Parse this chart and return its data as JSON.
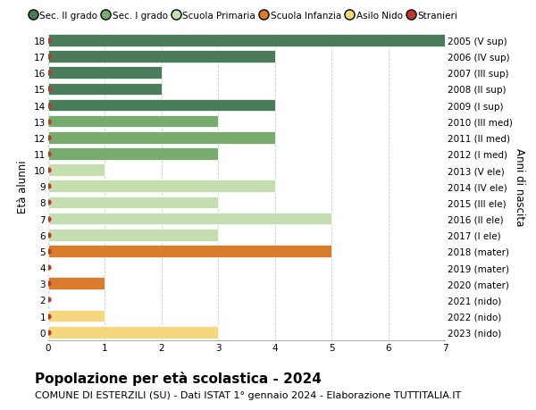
{
  "ages": [
    18,
    17,
    16,
    15,
    14,
    13,
    12,
    11,
    10,
    9,
    8,
    7,
    6,
    5,
    4,
    3,
    2,
    1,
    0
  ],
  "labels_right": [
    "2005 (V sup)",
    "2006 (IV sup)",
    "2007 (III sup)",
    "2008 (II sup)",
    "2009 (I sup)",
    "2010 (III med)",
    "2011 (II med)",
    "2012 (I med)",
    "2013 (V ele)",
    "2014 (IV ele)",
    "2015 (III ele)",
    "2016 (II ele)",
    "2017 (I ele)",
    "2018 (mater)",
    "2019 (mater)",
    "2020 (mater)",
    "2021 (nido)",
    "2022 (nido)",
    "2023 (nido)"
  ],
  "values": [
    7,
    4,
    2,
    2,
    4,
    3,
    4,
    3,
    1,
    4,
    3,
    5,
    3,
    5,
    0,
    1,
    0,
    1,
    3
  ],
  "colors": [
    "#4a7c59",
    "#4a7c59",
    "#4a7c59",
    "#4a7c59",
    "#4a7c59",
    "#7aab6e",
    "#7aab6e",
    "#7aab6e",
    "#c5deb0",
    "#c5deb0",
    "#c5deb0",
    "#c5deb0",
    "#c5deb0",
    "#d97b2a",
    "#d97b2a",
    "#d97b2a",
    "#f5d87e",
    "#f5d87e",
    "#f5d87e"
  ],
  "dot_color": "#c0392b",
  "legend_labels": [
    "Sec. II grado",
    "Sec. I grado",
    "Scuola Primaria",
    "Scuola Infanzia",
    "Asilo Nido",
    "Stranieri"
  ],
  "legend_colors": [
    "#4a7c59",
    "#7aab6e",
    "#c5deb0",
    "#d97b2a",
    "#f5d87e",
    "#c0392b"
  ],
  "ylabel_left": "Età alunni",
  "ylabel_right": "Anni di nascita",
  "title": "Popolazione per età scolastica - 2024",
  "subtitle": "COMUNE DI ESTERZILI (SU) - Dati ISTAT 1° gennaio 2024 - Elaborazione TUTTITALIA.IT",
  "xlim": [
    0,
    7
  ],
  "xticks": [
    0,
    1,
    2,
    3,
    4,
    5,
    6,
    7
  ],
  "background_color": "#ffffff",
  "grid_color": "#cccccc",
  "bar_height": 0.75,
  "title_fontsize": 11,
  "subtitle_fontsize": 8,
  "tick_fontsize": 7.5,
  "legend_fontsize": 7.5,
  "axis_label_fontsize": 8.5
}
